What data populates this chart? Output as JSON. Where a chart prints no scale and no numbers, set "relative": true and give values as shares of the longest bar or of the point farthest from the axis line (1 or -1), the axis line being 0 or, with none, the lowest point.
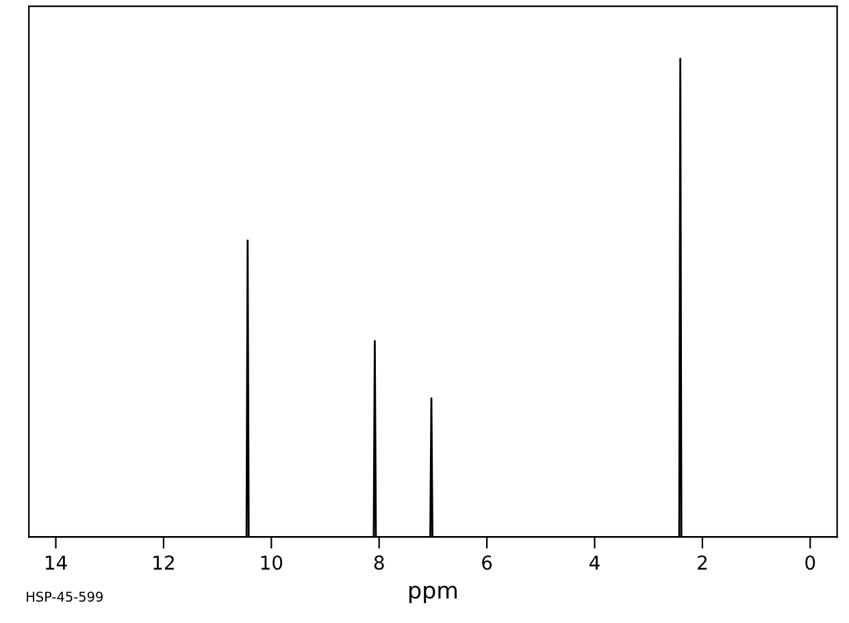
{
  "chart_data": {
    "type": "line",
    "relative": true,
    "xlabel": "ppm",
    "annotations": [
      "HSP-45-599"
    ],
    "xlim": [
      14.5,
      -0.5
    ],
    "xticks": [
      14,
      12,
      10,
      8,
      6,
      4,
      2,
      0
    ],
    "tick_labels": "x",
    "grid": false,
    "legend": false,
    "series": [
      {
        "color": "#000000",
        "x": [
          14.5,
          10.46,
          10.44,
          10.42,
          8.1,
          8.08,
          8.06,
          7.05,
          7.03,
          7.01,
          2.43,
          2.41,
          2.39,
          -0.5
        ],
        "values": [
          0,
          0,
          0.62,
          0,
          0,
          0.41,
          0,
          0,
          0.29,
          0,
          0,
          1,
          0,
          0
        ]
      }
    ]
  }
}
